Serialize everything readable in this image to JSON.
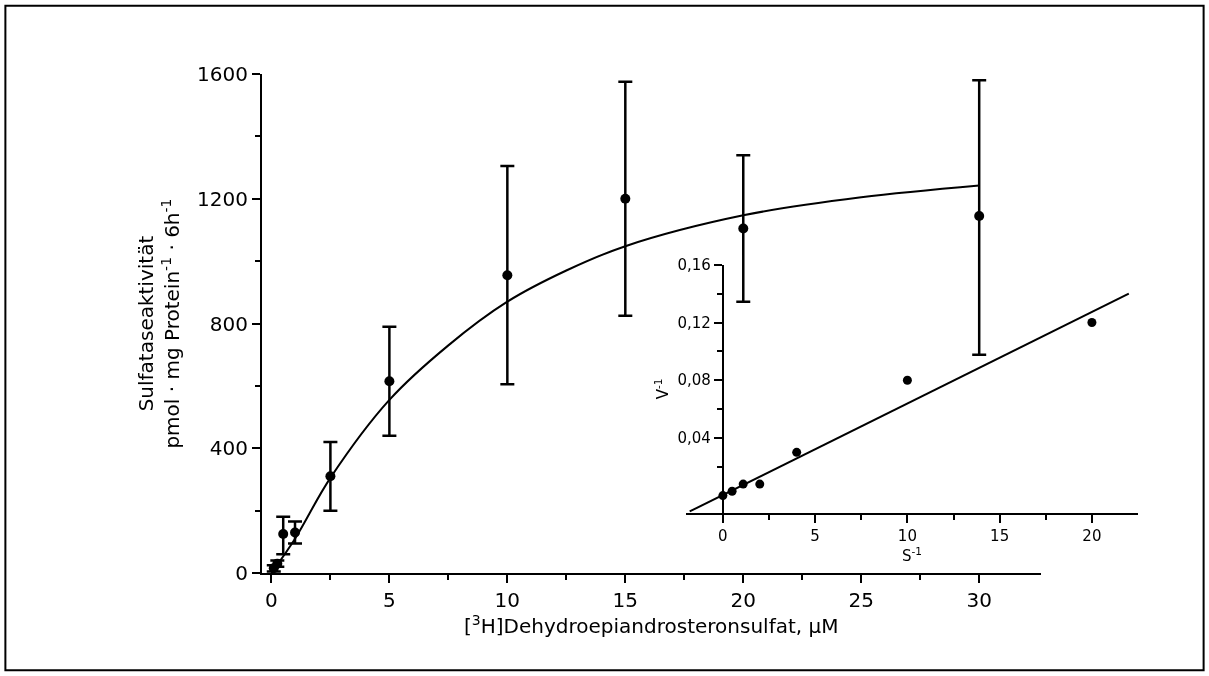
{
  "chart_data": [
    {
      "type": "scatter",
      "xlabel": "[$^{3}$H]Dehydroepiandrosteronsulfat, µM",
      "ylabel": "Sulfataseaktivität\npmol · mg Protein$^{-1}$ · 6h$^{-1}$",
      "x": [
        0.1,
        0.25,
        0.5,
        1,
        2.5,
        5,
        10,
        15,
        20,
        30
      ],
      "series": [
        {
          "color": "#000000",
          "values": [
            15,
            30,
            125,
            130,
            310,
            615,
            955,
            1200,
            1105,
            1145
          ],
          "errors": [
            [
              5,
              25
            ],
            [
              20,
              40
            ],
            [
              60,
              180
            ],
            [
              95,
              165
            ],
            [
              200,
              420
            ],
            [
              440,
              790
            ],
            [
              605,
              1305
            ],
            [
              825,
              1575
            ],
            [
              870,
              1340
            ],
            [
              700,
              1580
            ]
          ],
          "marker": "circle"
        },
        {
          "type": "line",
          "color": "#000000",
          "x": [
            0,
            1,
            2.5,
            5,
            7.5,
            10,
            12.5,
            15,
            20,
            25,
            30
          ],
          "values": [
            0,
            110,
            305,
            555,
            730,
            870,
            970,
            1048,
            1147,
            1205,
            1243
          ],
          "marker": "none",
          "line_style": "solid"
        }
      ],
      "xlim": [
        -0.4,
        32.6
      ],
      "ylim": [
        0,
        1600
      ],
      "xticks": [
        0,
        5,
        10,
        15,
        20,
        25,
        30
      ],
      "yticks": [
        0,
        400,
        800,
        1200,
        1600
      ],
      "grid": false
    },
    {
      "type": "scatter",
      "xlabel": "S$^{-1}$",
      "ylabel": "V$^{-1}$",
      "x": [
        0,
        0.5,
        1.1,
        2,
        4,
        10,
        20
      ],
      "series": [
        {
          "color": "#000000",
          "values": [
            0,
            0.003,
            0.008,
            0.008,
            0.03,
            0.08,
            0.12
          ],
          "marker": "circle"
        },
        {
          "type": "line",
          "color": "#000000",
          "x": [
            -1.8,
            22
          ],
          "values": [
            -0.011,
            0.14
          ],
          "marker": "none",
          "line_style": "solid"
        }
      ],
      "xlim": [
        -2,
        22.5
      ],
      "ylim": [
        -0.012,
        0.16
      ],
      "xticks": [
        0,
        5,
        10,
        15,
        20
      ],
      "yticks": [
        {
          "value": 0.04,
          "label": "0,04"
        },
        {
          "value": 0.08,
          "label": "0,08"
        },
        {
          "value": 0.12,
          "label": "0,12"
        },
        {
          "value": 0.16,
          "label": "0,16"
        }
      ],
      "grid": false
    }
  ]
}
